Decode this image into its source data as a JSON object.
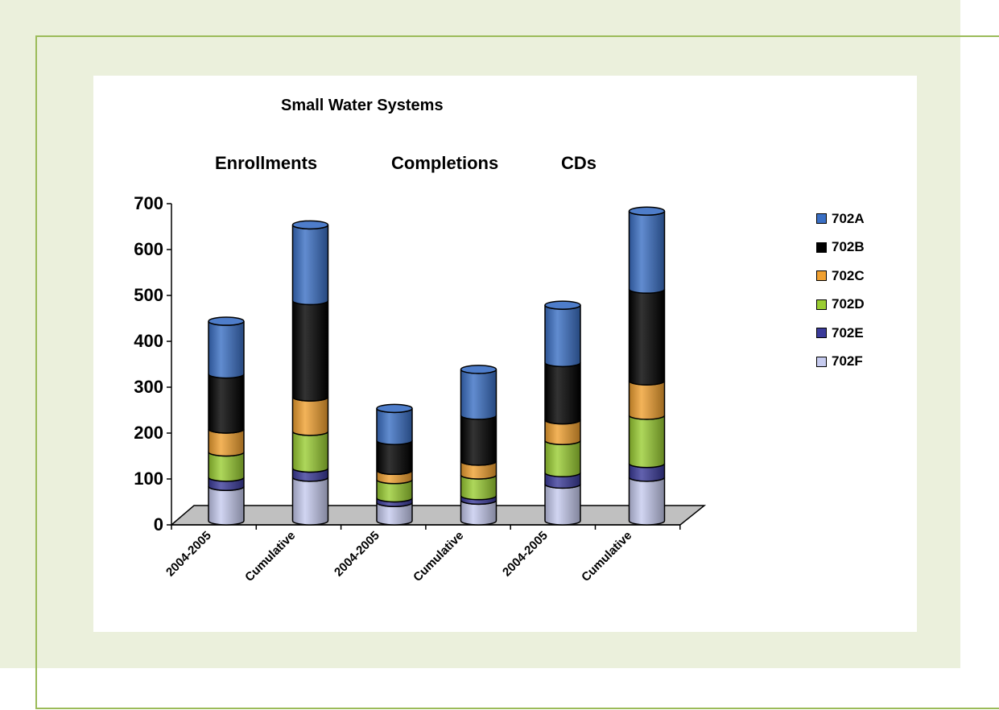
{
  "chart_data": {
    "type": "bar",
    "subtype": "stacked-3d-cylinder",
    "title": "Small Water Systems",
    "group_labels": [
      "Enrollments",
      "Completions",
      "CDs"
    ],
    "categories": [
      "2004-2005",
      "Cumulative",
      "2004-2005",
      "Cumulative",
      "2004-2005",
      "Cumulative"
    ],
    "ylim": [
      0,
      700
    ],
    "yticks": [
      "0",
      "100",
      "200",
      "300",
      "400",
      "500",
      "600",
      "700"
    ],
    "legend_position": "right",
    "series": [
      {
        "name": "702F",
        "color": "#c6cbef",
        "values": [
          75,
          95,
          40,
          45,
          80,
          95
        ]
      },
      {
        "name": "702E",
        "color": "#3b3b9a",
        "values": [
          20,
          20,
          10,
          10,
          25,
          30
        ]
      },
      {
        "name": "702D",
        "color": "#9acd32",
        "values": [
          55,
          80,
          40,
          45,
          70,
          105
        ]
      },
      {
        "name": "702C",
        "color": "#f0a030",
        "values": [
          50,
          75,
          20,
          30,
          45,
          75
        ]
      },
      {
        "name": "702B",
        "color": "#000000",
        "values": [
          120,
          210,
          65,
          100,
          125,
          200
        ]
      },
      {
        "name": "702A",
        "color": "#3a6fc4",
        "values": [
          115,
          165,
          70,
          100,
          125,
          170
        ]
      }
    ]
  }
}
